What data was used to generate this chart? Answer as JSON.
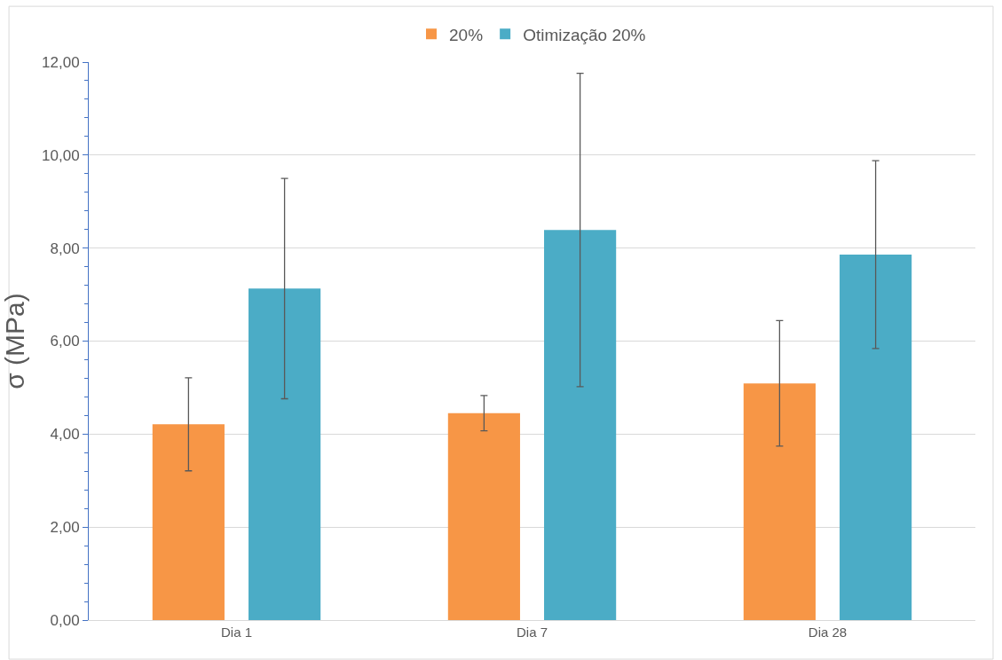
{
  "chart_data": {
    "type": "bar",
    "ylabel": "σ (MPa)",
    "categories": [
      "Dia 1",
      "Dia 7",
      "Dia 28"
    ],
    "series": [
      {
        "name": "20%",
        "color": "#f79646",
        "values": [
          4.21,
          4.45,
          5.09
        ],
        "errors": [
          1.0,
          0.38,
          1.35
        ]
      },
      {
        "name": "Otimização 20%",
        "color": "#4bacc6",
        "values": [
          7.13,
          8.39,
          7.86
        ],
        "errors": [
          2.37,
          3.37,
          2.02
        ]
      }
    ],
    "ylim": [
      0,
      12
    ],
    "yticks": [
      {
        "value": 0,
        "label": "0,00"
      },
      {
        "value": 2,
        "label": "2,00"
      },
      {
        "value": 4,
        "label": "4,00"
      },
      {
        "value": 6,
        "label": "6,00"
      },
      {
        "value": 8,
        "label": "8,00"
      },
      {
        "value": 10,
        "label": "10,00"
      },
      {
        "value": 12,
        "label": "12,00"
      }
    ],
    "grid": "y",
    "legend": "top"
  }
}
